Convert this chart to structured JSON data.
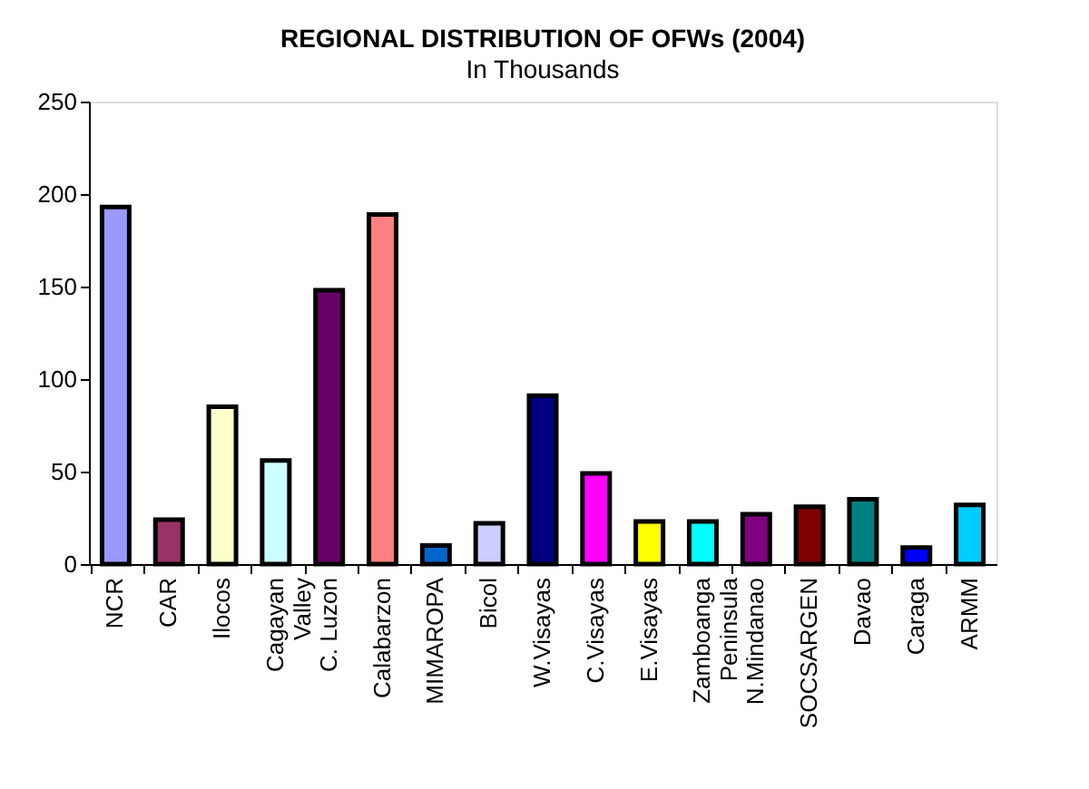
{
  "chart_data": {
    "type": "bar",
    "title": "REGIONAL DISTRIBUTION OF OFWs (2004)",
    "subtitle": "In Thousands",
    "categories": [
      "NCR",
      "CAR",
      "Ilocos",
      "Cagayan Valley",
      "C. Luzon",
      "Calabarzon",
      "MIMAROPA",
      "Bicol",
      "W.Visayas",
      "C.Visayas",
      "E.Visayas",
      "Zamboanga Peninsula",
      "N.Mindanao",
      "SOCSARGEN",
      "Davao",
      "Caraga",
      "ARMM"
    ],
    "values": [
      193,
      24,
      85,
      56,
      148,
      189,
      10,
      22,
      91,
      49,
      23,
      23,
      27,
      31,
      35,
      9,
      32
    ],
    "colors": [
      "#9999ff",
      "#993366",
      "#ffffcc",
      "#ccffff",
      "#660066",
      "#ff8080",
      "#0066cc",
      "#ccccff",
      "#000080",
      "#ff00ff",
      "#ffff00",
      "#00ffff",
      "#800080",
      "#800000",
      "#008080",
      "#0000ff",
      "#00ccff"
    ],
    "ylim": [
      0,
      250
    ],
    "yticks": [
      0,
      50,
      100,
      150,
      200,
      250
    ]
  }
}
